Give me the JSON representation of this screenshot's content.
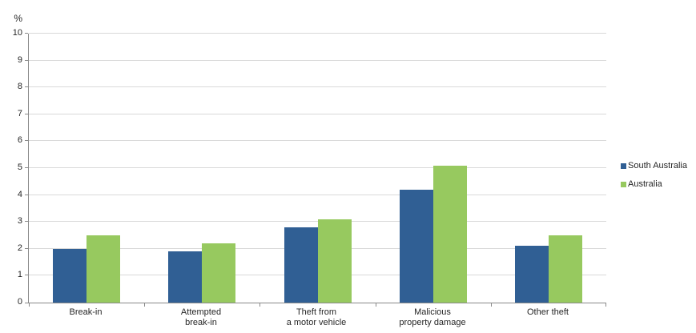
{
  "chart_data": {
    "type": "bar",
    "title": "",
    "ylabel": "%",
    "xlabel": "",
    "ylim": [
      0,
      10
    ],
    "ytick_step": 1,
    "ytick_labels": [
      "0",
      "1",
      "2",
      "3",
      "4",
      "5",
      "6",
      "7",
      "8",
      "9",
      "10"
    ],
    "grid": true,
    "legend_position": "right",
    "categories": [
      "Break-in",
      "Attempted break-in",
      "Theft from a motor vehicle",
      "Malicious property damage",
      "Other theft"
    ],
    "category_display": [
      "Break-in",
      "Attempted\nbreak-in",
      "Theft from\na motor vehicle",
      "Malicious\nproperty damage",
      "Other theft"
    ],
    "series": [
      {
        "name": "South Australia",
        "color": "#305F94",
        "values": [
          2.0,
          1.9,
          2.8,
          4.2,
          2.1
        ]
      },
      {
        "name": "Australia",
        "color": "#97C95F",
        "values": [
          2.5,
          2.2,
          3.1,
          5.1,
          2.5
        ]
      }
    ],
    "colors": {
      "grid": "#D9D9D9",
      "axis": "#898989",
      "text": "#262626",
      "background": "#FFFFFF"
    }
  }
}
